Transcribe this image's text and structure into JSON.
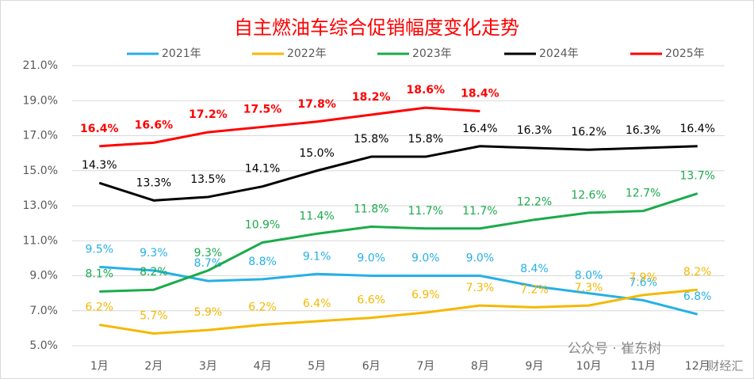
{
  "chart_data": {
    "type": "line",
    "title": "自主燃油车综合促销幅度变化走势",
    "categories": [
      "1月",
      "2月",
      "3月",
      "4月",
      "5月",
      "6月",
      "7月",
      "8月",
      "9月",
      "10月",
      "11月",
      "12月"
    ],
    "series": [
      {
        "name": "2021年",
        "color": "#26b0e6",
        "values": [
          9.5,
          9.3,
          8.7,
          8.8,
          9.1,
          9.0,
          9.0,
          9.0,
          8.4,
          8.0,
          7.6,
          6.8
        ],
        "value_labels": [
          "9.5%",
          "9.3%",
          "8.7%",
          "8.8%",
          "9.1%",
          "9.0%",
          "9.0%",
          "9.0%",
          "8.4%",
          "8.0%",
          "7.6%",
          "6.8%"
        ]
      },
      {
        "name": "2022年",
        "color": "#f5b800",
        "values": [
          6.2,
          5.7,
          5.9,
          6.2,
          6.4,
          6.6,
          6.9,
          7.3,
          7.2,
          7.3,
          7.9,
          8.2
        ],
        "value_labels": [
          "6.2%",
          "5.7%",
          "5.9%",
          "6.2%",
          "6.4%",
          "6.6%",
          "6.9%",
          "7.3%",
          "7.2%",
          "7.3%",
          "7.9%",
          "8.2%"
        ]
      },
      {
        "name": "2023年",
        "color": "#1aab4b",
        "values": [
          8.1,
          8.2,
          9.3,
          10.9,
          11.4,
          11.8,
          11.7,
          11.7,
          12.2,
          12.6,
          12.7,
          13.7
        ],
        "value_labels": [
          "8.1%",
          "8.2%",
          "9.3%",
          "10.9%",
          "11.4%",
          "11.8%",
          "11.7%",
          "11.7%",
          "12.2%",
          "12.6%",
          "12.7%",
          "13.7%"
        ]
      },
      {
        "name": "2024年",
        "color": "#000000",
        "values": [
          14.3,
          13.3,
          13.5,
          14.1,
          15.0,
          15.8,
          15.8,
          16.4,
          16.3,
          16.2,
          16.3,
          16.4
        ],
        "value_labels": [
          "14.3%",
          "13.3%",
          "13.5%",
          "14.1%",
          "15.0%",
          "15.8%",
          "15.8%",
          "16.4%",
          "16.3%",
          "16.2%",
          "16.3%",
          "16.4%"
        ]
      },
      {
        "name": "2025年",
        "color": "#ff0000",
        "values": [
          16.4,
          16.6,
          17.2,
          17.5,
          17.8,
          18.2,
          18.6,
          18.4,
          null,
          null,
          null,
          null
        ],
        "value_labels": [
          "16.4%",
          "16.6%",
          "17.2%",
          "17.5%",
          "17.8%",
          "18.2%",
          "18.6%",
          "18.4%",
          null,
          null,
          null,
          null
        ]
      }
    ],
    "ylim": [
      5,
      21
    ],
    "yticks": [
      {
        "value": 5,
        "label": "5.0%"
      },
      {
        "value": 7,
        "label": "7.0%"
      },
      {
        "value": 9,
        "label": "9.0%"
      },
      {
        "value": 11,
        "label": "11.0%"
      },
      {
        "value": 13,
        "label": "13.0%"
      },
      {
        "value": 15,
        "label": "15.0%"
      },
      {
        "value": 17,
        "label": "17.0%"
      },
      {
        "value": 19,
        "label": "19.0%"
      },
      {
        "value": 21,
        "label": "21.0%"
      }
    ],
    "grid": true,
    "legend": "top",
    "watermark": "公众号 · 崔东树",
    "watermark2": "财经汇"
  }
}
